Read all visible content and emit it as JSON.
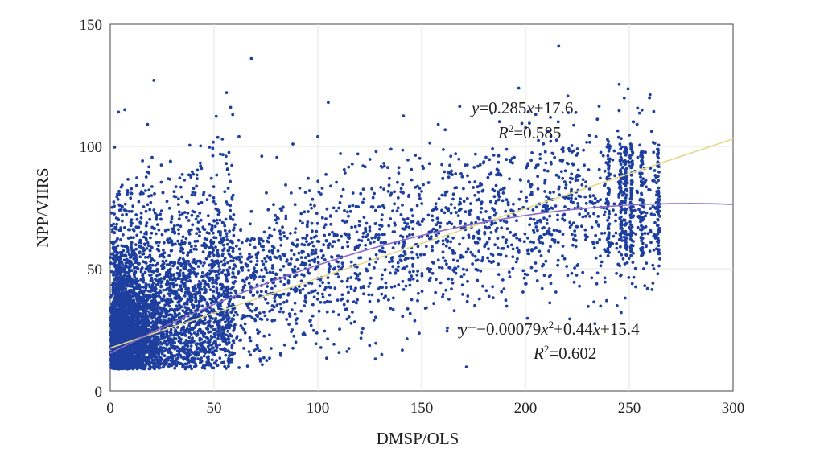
{
  "chart_data": {
    "type": "scatter",
    "xlabel": "DMSP/OLS",
    "ylabel": "NPP/VIIRS",
    "xlim": [
      0,
      300
    ],
    "ylim": [
      0,
      150
    ],
    "x_ticks": [
      "0",
      "50",
      "100",
      "150",
      "200",
      "250",
      "300"
    ],
    "y_ticks": [
      "0",
      "50",
      "100",
      "150"
    ],
    "grid": true,
    "point_color": "#1f3f9f",
    "linear_fit": {
      "label_y": "y",
      "label_expr": "=0.285",
      "label_x": "x",
      "label_const": "+17.6",
      "r2_label": "R",
      "r2_sup": "2",
      "r2_value": "=0.585",
      "slope": 0.285,
      "intercept": 17.6,
      "color": "#e3d98a"
    },
    "poly_fit": {
      "label_y": "y",
      "label_expr1": "=−0.00079",
      "label_x1": "x",
      "label_sup": "2",
      "label_expr2": "+0.44",
      "label_x2": "x",
      "label_const": "+15.4",
      "r2_label": "R",
      "r2_sup": "2",
      "r2_value": "=0.602",
      "a": -0.00079,
      "b": 0.44,
      "c": 15.4,
      "color": "#8a6ac8"
    },
    "sample_points_description_free": true,
    "outliers": [
      [
        216,
        141
      ],
      [
        68,
        136
      ],
      [
        21,
        127
      ],
      [
        56,
        122
      ],
      [
        58,
        116
      ],
      [
        105,
        118
      ],
      [
        7,
        115
      ],
      [
        4,
        114
      ],
      [
        59,
        113
      ],
      [
        18,
        109
      ],
      [
        158,
        109
      ],
      [
        54,
        103
      ],
      [
        62,
        104
      ],
      [
        100,
        104
      ],
      [
        88,
        101
      ],
      [
        234,
        104
      ],
      [
        225,
        99
      ],
      [
        73,
        96
      ]
    ]
  }
}
